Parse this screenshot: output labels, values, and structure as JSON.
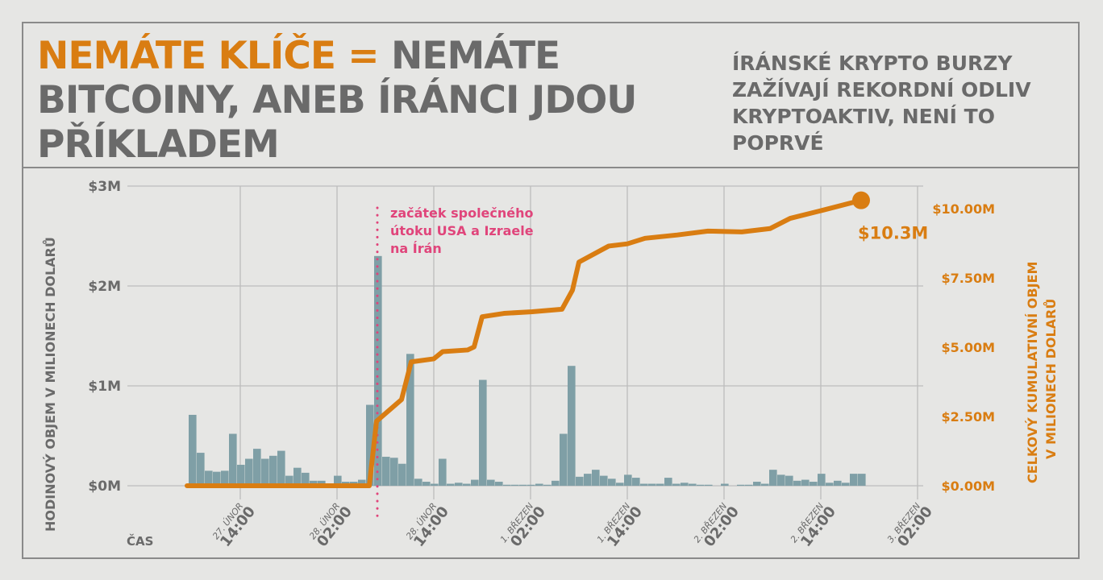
{
  "header": {
    "title_accent": "NEMÁTE KLÍČE =",
    "title_rest": " NEMÁTE BITCOINY, ANEB ÍRÁNCI JDOU PŘÍKLADEM",
    "subtitle": "ÍRÁNSKÉ KRYPTO BURZY ZAŽÍVAJÍ REKORDNÍ ODLIV KRYPTOAKTIV, NENÍ TO POPRVÉ"
  },
  "colors": {
    "accent": "#d97d12",
    "text": "#6a6a6a",
    "bars": "#7f9fa6",
    "annotation": "#e0457b",
    "grid": "#bdbdbd",
    "background": "#e6e6e4"
  },
  "chart_data": {
    "type": "bar+line",
    "xlabel": "ČAS",
    "ylabel_left": "HODINOVÝ OBJEM V MILIONECH DOLARŮ",
    "ylabel_right": "CELKOVÝ KUMULATIVNÍ OBJEM V MILIONECH DOLARŮ",
    "left_axis": {
      "ylim": [
        0,
        3
      ],
      "ticks": [
        0,
        1,
        2,
        3
      ],
      "tick_labels": [
        "$0M",
        "$1M",
        "$2M",
        "$3M"
      ]
    },
    "right_axis": {
      "ylim": [
        0,
        10
      ],
      "ticks": [
        0,
        2.5,
        5,
        7.5,
        10
      ],
      "tick_labels": [
        "$0.00M",
        "$2.50M",
        "$5.00M",
        "$7.50M",
        "$10.00M"
      ]
    },
    "x_unit": "hours from first bar",
    "x_ticks": [
      {
        "x": 6.4,
        "date": "27. ÚNOR",
        "time": "14:00"
      },
      {
        "x": 18.4,
        "date": "28. ÚNOR",
        "time": "02:00"
      },
      {
        "x": 30.4,
        "date": "28. ÚNOR",
        "time": "14:00"
      },
      {
        "x": 42.4,
        "date": "1. BŘEZEN",
        "time": "02:00"
      },
      {
        "x": 54.4,
        "date": "1. BŘEZEN",
        "time": "14:00"
      },
      {
        "x": 66.4,
        "date": "2. BŘEZEN",
        "time": "02:00"
      },
      {
        "x": 78.4,
        "date": "2. BŘEZEN",
        "time": "14:00"
      },
      {
        "x": 90.4,
        "date": "3. BŘEZEN",
        "time": "02:00"
      }
    ],
    "series": [
      {
        "name": "Hodinový objem",
        "axis": "left",
        "type": "bar",
        "values": [
          0.71,
          0.33,
          0.15,
          0.14,
          0.15,
          0.52,
          0.21,
          0.27,
          0.37,
          0.27,
          0.3,
          0.35,
          0.1,
          0.18,
          0.13,
          0.05,
          0.05,
          0.0,
          0.1,
          0.04,
          0.04,
          0.06,
          0.81,
          2.3,
          0.29,
          0.28,
          0.22,
          1.32,
          0.07,
          0.04,
          0.02,
          0.27,
          0.02,
          0.03,
          0.02,
          0.06,
          1.06,
          0.06,
          0.04,
          0.01,
          0.01,
          0.01,
          0.01,
          0.02,
          0.01,
          0.05,
          0.52,
          1.2,
          0.09,
          0.12,
          0.16,
          0.1,
          0.07,
          0.03,
          0.11,
          0.08,
          0.02,
          0.02,
          0.02,
          0.08,
          0.02,
          0.03,
          0.02,
          0.01,
          0.01,
          0.0,
          0.02,
          0.0,
          0.01,
          0.01,
          0.04,
          0.02,
          0.16,
          0.11,
          0.1,
          0.05,
          0.06,
          0.04,
          0.12,
          0.03,
          0.05,
          0.03,
          0.12,
          0.12
        ]
      },
      {
        "name": "Kumulativní objem",
        "axis": "right",
        "type": "line",
        "points": [
          [
            -0.2,
            0
          ],
          [
            22.4,
            0
          ],
          [
            23.3,
            2.33
          ],
          [
            26.4,
            3.11
          ],
          [
            27.6,
            4.47
          ],
          [
            30.4,
            4.58
          ],
          [
            31.5,
            4.84
          ],
          [
            34.6,
            4.9
          ],
          [
            35.4,
            5.01
          ],
          [
            36.4,
            6.1
          ],
          [
            39.1,
            6.22
          ],
          [
            42.6,
            6.28
          ],
          [
            46.3,
            6.37
          ],
          [
            47.6,
            7.06
          ],
          [
            48.4,
            8.07
          ],
          [
            52.1,
            8.65
          ],
          [
            54.4,
            8.73
          ],
          [
            56.6,
            8.93
          ],
          [
            60.6,
            9.05
          ],
          [
            64.4,
            9.19
          ],
          [
            68.6,
            9.16
          ],
          [
            72.1,
            9.28
          ],
          [
            74.6,
            9.65
          ],
          [
            78.6,
            9.94
          ],
          [
            83.4,
            10.3
          ]
        ]
      }
    ],
    "end_label": "$10.3M",
    "annotation": {
      "x": 23.4,
      "lines": [
        "začátek společného",
        "útoku USA a Izraele",
        "na Írán"
      ]
    }
  }
}
